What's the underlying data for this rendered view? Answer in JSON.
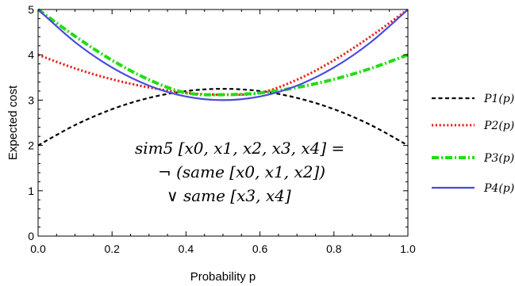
{
  "chart_data": {
    "type": "line",
    "xlabel": "Probability p",
    "ylabel": "Expected cost",
    "xlim": [
      0,
      1
    ],
    "ylim": [
      0,
      5
    ],
    "xticks": [
      "0.0",
      "0.2",
      "0.4",
      "0.6",
      "0.8",
      "1.0"
    ],
    "yticks": [
      "0",
      "1",
      "2",
      "3",
      "4",
      "5"
    ],
    "legend_position": "right",
    "annotation": [
      "sim5 [x0, x1, x2, x3, x4] =",
      "¬ (same [x0, x1, x2])",
      "∨ same [x3, x4]"
    ],
    "x": [
      0.0,
      0.1,
      0.2,
      0.3,
      0.4,
      0.5,
      0.6,
      0.7,
      0.8,
      0.9,
      1.0
    ],
    "series": [
      {
        "name": "P1(p)",
        "color": "#000000",
        "style": "dashed",
        "values": [
          2.0,
          2.45,
          2.8,
          3.05,
          3.2,
          3.25,
          3.2,
          3.05,
          2.8,
          2.45,
          2.0
        ]
      },
      {
        "name": "P2(p)",
        "color": "#e8201a",
        "style": "dotted",
        "values": [
          4.0,
          3.7,
          3.46,
          3.28,
          3.16,
          3.12,
          3.16,
          3.45,
          3.88,
          4.41,
          5.0
        ]
      },
      {
        "name": "P3(p)",
        "color": "#22dd11",
        "style": "dashdot",
        "values": [
          5.0,
          4.41,
          3.88,
          3.45,
          3.16,
          3.12,
          3.16,
          3.28,
          3.46,
          3.7,
          4.0
        ]
      },
      {
        "name": "P4(p)",
        "color": "#4b4bdc",
        "style": "solid",
        "values": [
          5.0,
          4.28,
          3.72,
          3.32,
          3.08,
          3.0,
          3.08,
          3.32,
          3.72,
          4.28,
          5.0
        ]
      }
    ]
  }
}
